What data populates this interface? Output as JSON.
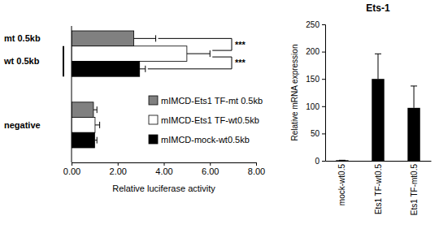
{
  "chart_data": [
    {
      "type": "bar",
      "orientation": "horizontal",
      "categories": [
        null,
        "negative"
      ],
      "series": [
        {
          "name": "mIMCD-Ets1 TF-mt 0.5kb",
          "color": "#808080",
          "values": [
            2.7,
            0.95
          ],
          "errors": [
            0.95,
            0.15
          ]
        },
        {
          "name": "mIMCD-Ets1 TF-wt0.5kb",
          "color": "#ffffff",
          "values": [
            5.0,
            1.02
          ],
          "errors": [
            1.0,
            0.2
          ]
        },
        {
          "name": "mIMCD-mock-wt0.5kb",
          "color": "#000000",
          "values": [
            2.95,
            1.0
          ],
          "errors": [
            0.25,
            0.1
          ]
        }
      ],
      "xlim": [
        0,
        8
      ],
      "xticks": [
        {
          "value": 0,
          "label": "0.00"
        },
        {
          "value": 2,
          "label": "2.00"
        },
        {
          "value": 4,
          "label": "4.00"
        },
        {
          "value": 6,
          "label": "6.00"
        },
        {
          "value": 8,
          "label": "8.00"
        }
      ],
      "xlabel": "Relative luciferase activity",
      "legend": "right",
      "annotations": [
        "mt 0.5kb",
        "wt 0.5kb",
        "***",
        "***"
      ]
    },
    {
      "type": "bar",
      "title": "Ets-1",
      "categories": [
        "mock-wt0.5",
        "Ets1 TF-wt0.5",
        "Ets1 TF-mt0.5"
      ],
      "values": [
        1,
        150,
        97
      ],
      "errors": [
        0,
        46,
        40
      ],
      "color": "#000000",
      "ylim": [
        0,
        250
      ],
      "yticks": [
        0,
        50,
        100,
        150,
        200,
        250
      ],
      "ylabel": "Relative mRNA expression"
    }
  ]
}
